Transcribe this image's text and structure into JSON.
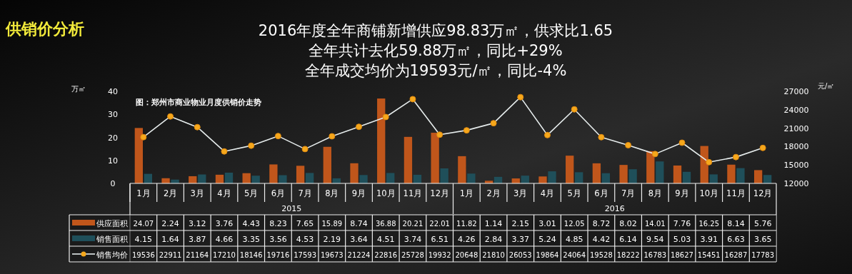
{
  "chart_data": {
    "type": "bar",
    "title": "供销价分析",
    "subtitle": "2016年度全年商铺新增供应98.83万㎡，供求比1.65\n全年共计去化59.88万㎡，同比+29%\n全年成交均价为19593元/㎡，同比-4%",
    "ylabel": "万㎡",
    "y2label": "元/㎡",
    "annotations": [
      "图：郑州市商业物业月度供销价走势",
      "2015",
      "2016"
    ],
    "categories": [
      "1月",
      "2月",
      "3月",
      "4月",
      "5月",
      "6月",
      "7月",
      "8月",
      "9月",
      "10月",
      "11月",
      "12月",
      "1月",
      "2月",
      "3月",
      "4月",
      "5月",
      "6月",
      "7月",
      "8月",
      "9月",
      "10月",
      "11月",
      "12月"
    ],
    "series": [
      {
        "name": "供应面积",
        "color": "#c0561b",
        "values": [
          24.07,
          2.24,
          3.12,
          3.76,
          4.43,
          8.23,
          7.65,
          15.89,
          8.74,
          36.88,
          20.21,
          22.01,
          11.82,
          1.14,
          2.15,
          3.01,
          12.05,
          8.72,
          8.02,
          14.01,
          7.76,
          16.25,
          8.14,
          5.76
        ]
      },
      {
        "name": "销售面积",
        "color": "#1f4f5a",
        "values": [
          4.15,
          1.64,
          3.87,
          4.66,
          3.35,
          3.56,
          4.53,
          2.19,
          3.64,
          4.51,
          3.74,
          6.51,
          4.26,
          2.84,
          3.37,
          5.24,
          4.85,
          4.42,
          6.14,
          9.54,
          5.03,
          3.91,
          6.63,
          3.65
        ]
      },
      {
        "name": "销售均价",
        "type": "line",
        "axis": "y2",
        "color": "#e6ecec",
        "marker": "circle",
        "values": [
          19536,
          22911,
          21164,
          17210,
          18146,
          19716,
          17593,
          19673,
          21224,
          22816,
          25728,
          19932,
          20648,
          21810,
          26053,
          19864,
          24064,
          19528,
          18222,
          16783,
          18627,
          15451,
          16287,
          17783
        ]
      }
    ],
    "ylim": [
      0,
      40
    ],
    "yticks": [
      0,
      10,
      20,
      30,
      40
    ],
    "y2lim": [
      12000,
      27000
    ],
    "y2ticks": [
      12000,
      15000,
      18000,
      21000,
      24000,
      27000
    ],
    "data_labels": true,
    "legend": "bottom left",
    "grid": false
  }
}
